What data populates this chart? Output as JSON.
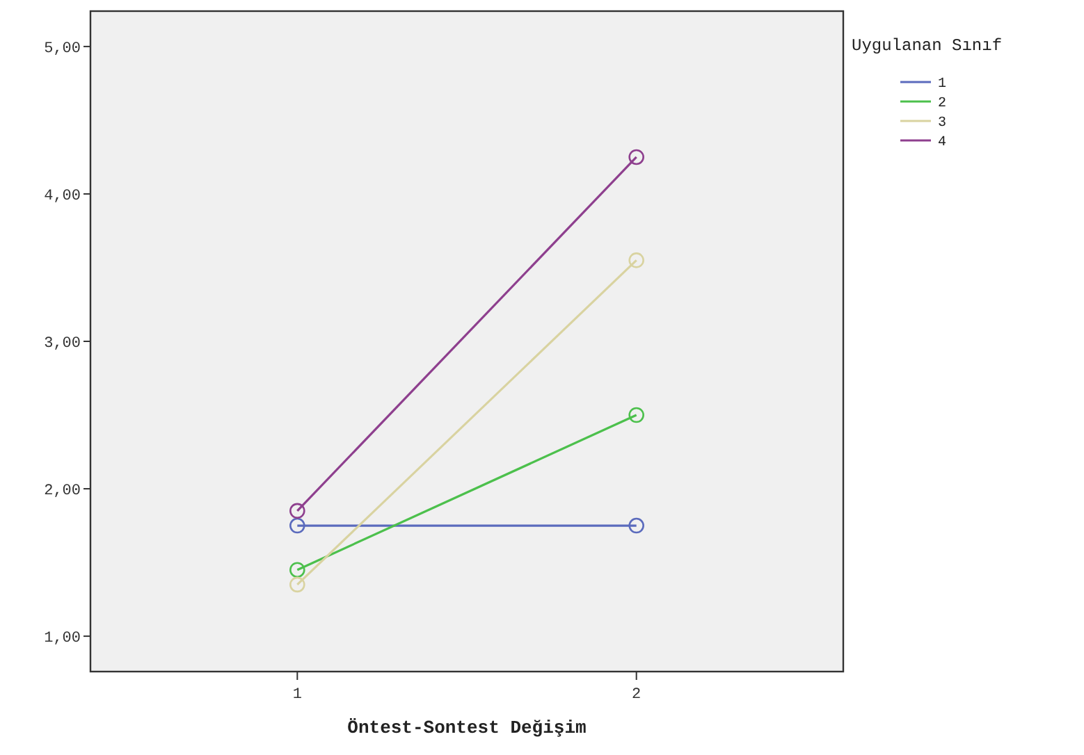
{
  "chart_data": {
    "type": "line",
    "xlabel": "Öntest-Sontest Değişim",
    "legend_title": "Uygulanan Sınıf",
    "categories": [
      "1",
      "2"
    ],
    "series": [
      {
        "name": "1",
        "color": "#5b6bbd",
        "values": [
          1.75,
          1.75
        ]
      },
      {
        "name": "2",
        "color": "#4cc04c",
        "values": [
          1.45,
          2.5
        ]
      },
      {
        "name": "3",
        "color": "#d9d3a0",
        "values": [
          1.35,
          3.55
        ]
      },
      {
        "name": "4",
        "color": "#8e3f8e",
        "values": [
          1.85,
          4.25
        ]
      }
    ],
    "ylim": [
      0.76,
      5.24
    ],
    "yticks": [
      {
        "value": 1,
        "label": "1,00"
      },
      {
        "value": 2,
        "label": "2,00"
      },
      {
        "value": 3,
        "label": "3,00"
      },
      {
        "value": 4,
        "label": "4,00"
      },
      {
        "value": 5,
        "label": "5,00"
      }
    ],
    "grid": false,
    "legend": "top right",
    "marker": "circle",
    "line_style": "solid"
  }
}
